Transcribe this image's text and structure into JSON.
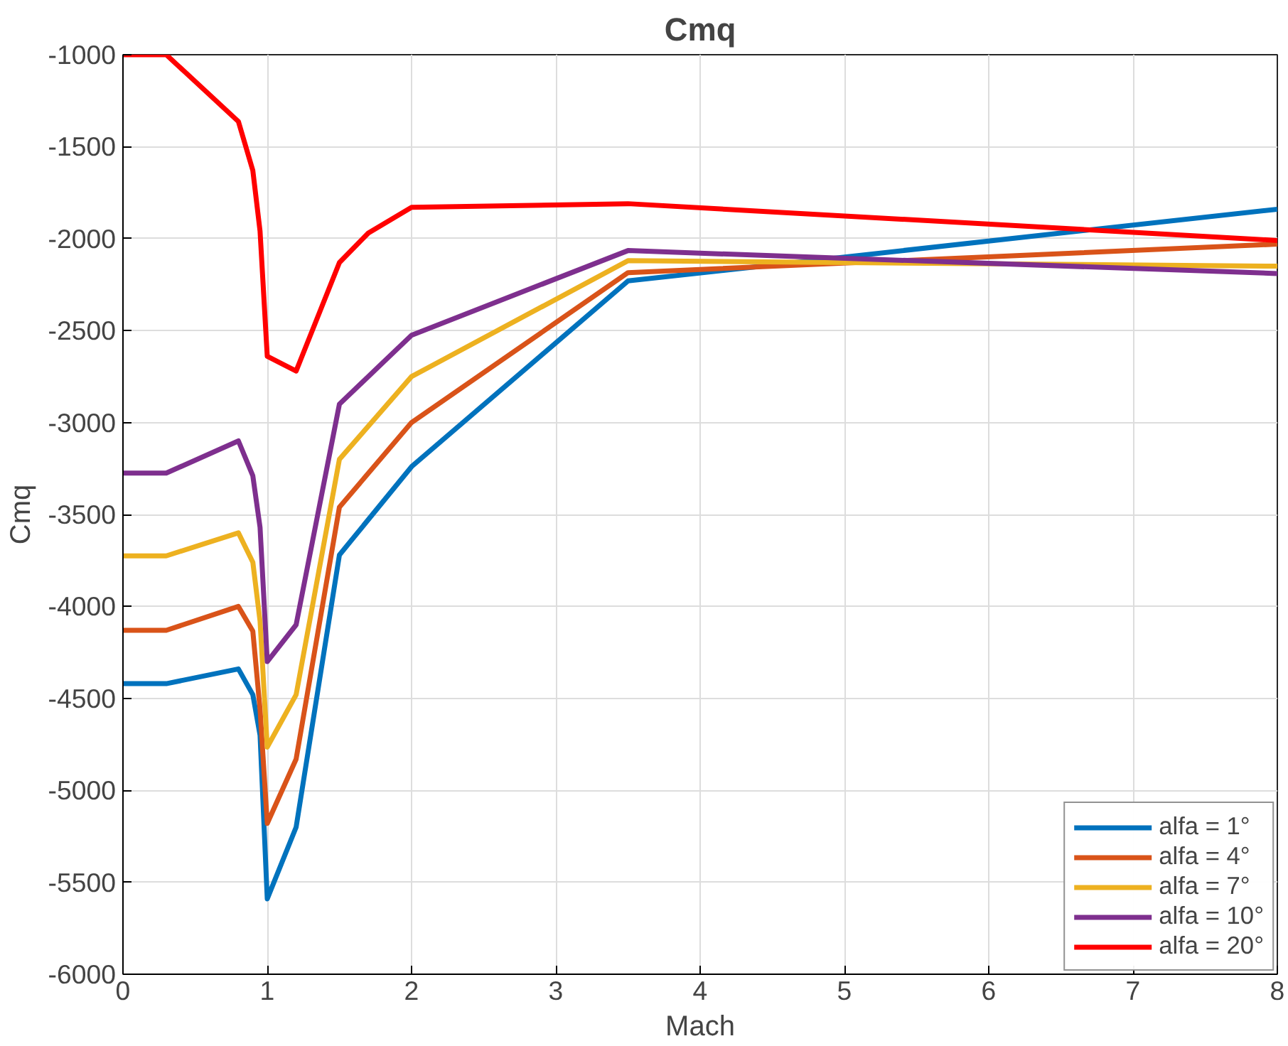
{
  "chart_data": {
    "type": "line",
    "title": "Cmq",
    "xlabel": "Mach",
    "ylabel": "Cmq",
    "x": [
      0,
      0.3,
      0.8,
      0.9,
      0.95,
      1.0,
      1.2,
      1.5,
      2,
      3.5,
      8
    ],
    "series": [
      {
        "name": "alfa = 1°",
        "color": "#0072bd",
        "values": [
          -4420,
          -4420,
          -4340,
          -4480,
          -4700,
          -5590,
          -5200,
          -3720,
          -3240,
          -2230,
          -1840
        ]
      },
      {
        "name": "alfa = 4°",
        "color": "#d95319",
        "values": [
          -4130,
          -4130,
          -4000,
          -4135,
          -4560,
          -5180,
          -4830,
          -3460,
          -3000,
          -2185,
          -2030
        ]
      },
      {
        "name": "alfa = 7°",
        "color": "#edb120",
        "values": [
          -3725,
          -3725,
          -3600,
          -3760,
          -4080,
          -4765,
          -4480,
          -3200,
          -2750,
          -2120,
          -2150
        ]
      },
      {
        "name": "alfa = 10°",
        "color": "#7e2f8e",
        "values": [
          -3275,
          -3275,
          -3100,
          -3290,
          -3570,
          -4300,
          -4100,
          -2900,
          -2525,
          -2065,
          -2190
        ]
      },
      {
        "name": "alfa = 20°",
        "color": "#ff0000",
        "x": [
          0,
          0.3,
          0.8,
          0.9,
          0.95,
          1.0,
          1.2,
          1.5,
          1.7,
          2,
          3.5,
          8
        ],
        "values": [
          -1000,
          -1000,
          -1363,
          -1630,
          -1960,
          -2640,
          -2720,
          -2130,
          -1970,
          -1830,
          -1810,
          -2010
        ]
      }
    ],
    "xlim": [
      0,
      8
    ],
    "xticks": [
      0,
      1,
      2,
      3,
      4,
      5,
      6,
      7,
      8
    ],
    "ylim": [
      -6000,
      -1000
    ],
    "yticks": [
      -6000,
      -5500,
      -5000,
      -4500,
      -4000,
      -3500,
      -3000,
      -2500,
      -2000,
      -1500,
      -1000
    ],
    "grid": true,
    "legend": "bottom right",
    "marker": "none",
    "line_style": "solid"
  }
}
